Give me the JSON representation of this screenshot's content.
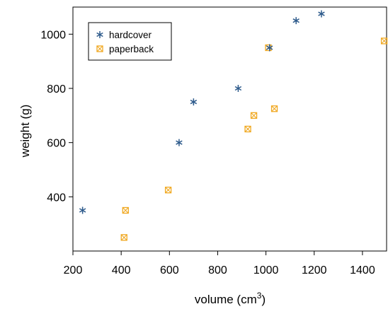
{
  "chart_data": {
    "type": "scatter",
    "xlabel": "volume (cm",
    "xlabel_sup": "3",
    "xlabel_close": ")",
    "ylabel": "weight (g)",
    "xlim": [
      200,
      1500
    ],
    "ylim": [
      200,
      1100
    ],
    "xticks": [
      200,
      400,
      600,
      800,
      1000,
      1200,
      1400
    ],
    "yticks": [
      400,
      600,
      800,
      1000
    ],
    "legend_position": "top-left",
    "grid": false,
    "series": [
      {
        "name": "hardcover",
        "marker": "asterisk",
        "color": "#2e5b8c",
        "points": [
          {
            "x": 240,
            "y": 350
          },
          {
            "x": 640,
            "y": 600
          },
          {
            "x": 700,
            "y": 750
          },
          {
            "x": 885,
            "y": 800
          },
          {
            "x": 1015,
            "y": 950
          },
          {
            "x": 1125,
            "y": 1050
          },
          {
            "x": 1230,
            "y": 1075
          }
        ]
      },
      {
        "name": "paperback",
        "marker": "boxed-x",
        "color": "#f0a820",
        "points": [
          {
            "x": 412,
            "y": 250
          },
          {
            "x": 418,
            "y": 350
          },
          {
            "x": 595,
            "y": 425
          },
          {
            "x": 925,
            "y": 650
          },
          {
            "x": 950,
            "y": 700
          },
          {
            "x": 1010,
            "y": 950
          },
          {
            "x": 1035,
            "y": 725
          },
          {
            "x": 1490,
            "y": 975
          }
        ]
      }
    ]
  }
}
